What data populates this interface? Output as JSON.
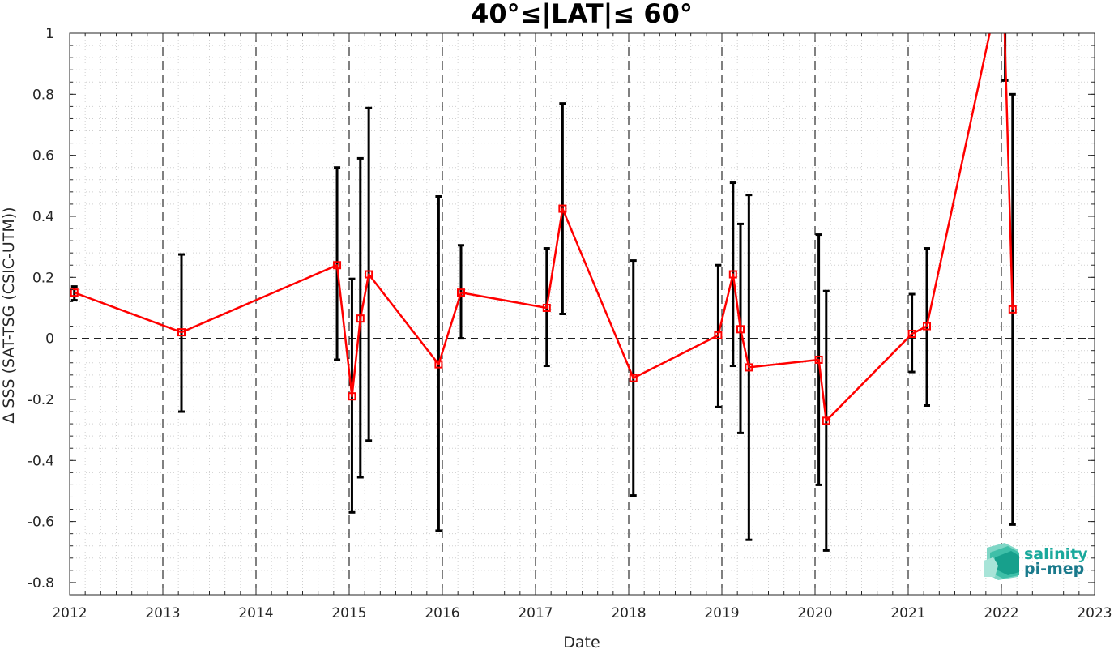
{
  "chart_data": {
    "type": "line",
    "title": "40°≤|LAT|≤ 60°",
    "xlabel": "Date",
    "ylabel": "Δ SSS (SAT-TSG (CSIC-UTM))",
    "xlim": [
      2012,
      2023
    ],
    "ylim": [
      -0.84,
      1.0
    ],
    "x_ticks": [
      "2012",
      "2013",
      "2014",
      "2015",
      "2016",
      "2017",
      "2018",
      "2019",
      "2020",
      "2021",
      "2022",
      "2023"
    ],
    "y_ticks": [
      "1",
      "0.8",
      "0.6",
      "0.4",
      "0.2",
      "0",
      "-0.2",
      "-0.4",
      "-0.6",
      "-0.8"
    ],
    "y_tick_values": [
      1,
      0.8,
      0.6,
      0.4,
      0.2,
      0,
      -0.2,
      -0.4,
      -0.6,
      -0.8
    ],
    "grid": true,
    "reference_line": 0,
    "series": [
      {
        "color": "#ff0000",
        "marker": "square",
        "x": [
          2012.05,
          2013.2,
          2014.87,
          2015.03,
          2015.12,
          2015.21,
          2015.96,
          2016.2,
          2017.12,
          2017.29,
          2018.05,
          2018.96,
          2019.12,
          2019.2,
          2019.29,
          2020.04,
          2020.12,
          2021.04,
          2021.2,
          2022.12
        ],
        "y": [
          0.15,
          0.02,
          0.24,
          -0.19,
          0.065,
          0.21,
          -0.085,
          0.15,
          0.1,
          0.425,
          -0.13,
          0.01,
          0.21,
          0.03,
          -0.095,
          -0.07,
          -0.27,
          0.015,
          0.04,
          0.095
        ],
        "err_low": [
          0.125,
          -0.24,
          -0.07,
          -0.57,
          -0.455,
          -0.335,
          -0.63,
          0.0,
          -0.09,
          0.08,
          -0.515,
          -0.225,
          -0.09,
          -0.31,
          -0.66,
          -0.48,
          -0.695,
          -0.11,
          -0.22,
          -0.61
        ],
        "err_high": [
          0.17,
          0.275,
          0.56,
          0.195,
          0.59,
          0.755,
          0.465,
          0.305,
          0.295,
          0.77,
          0.255,
          0.24,
          0.51,
          0.375,
          0.47,
          0.34,
          0.155,
          0.145,
          0.295,
          0.8
        ]
      }
    ],
    "offscale_point": {
      "x": 2022.04,
      "err_low": 0.845
    }
  },
  "logo": {
    "line1": "salinity",
    "line2": "pi-mep",
    "color": "#1aa99c"
  }
}
